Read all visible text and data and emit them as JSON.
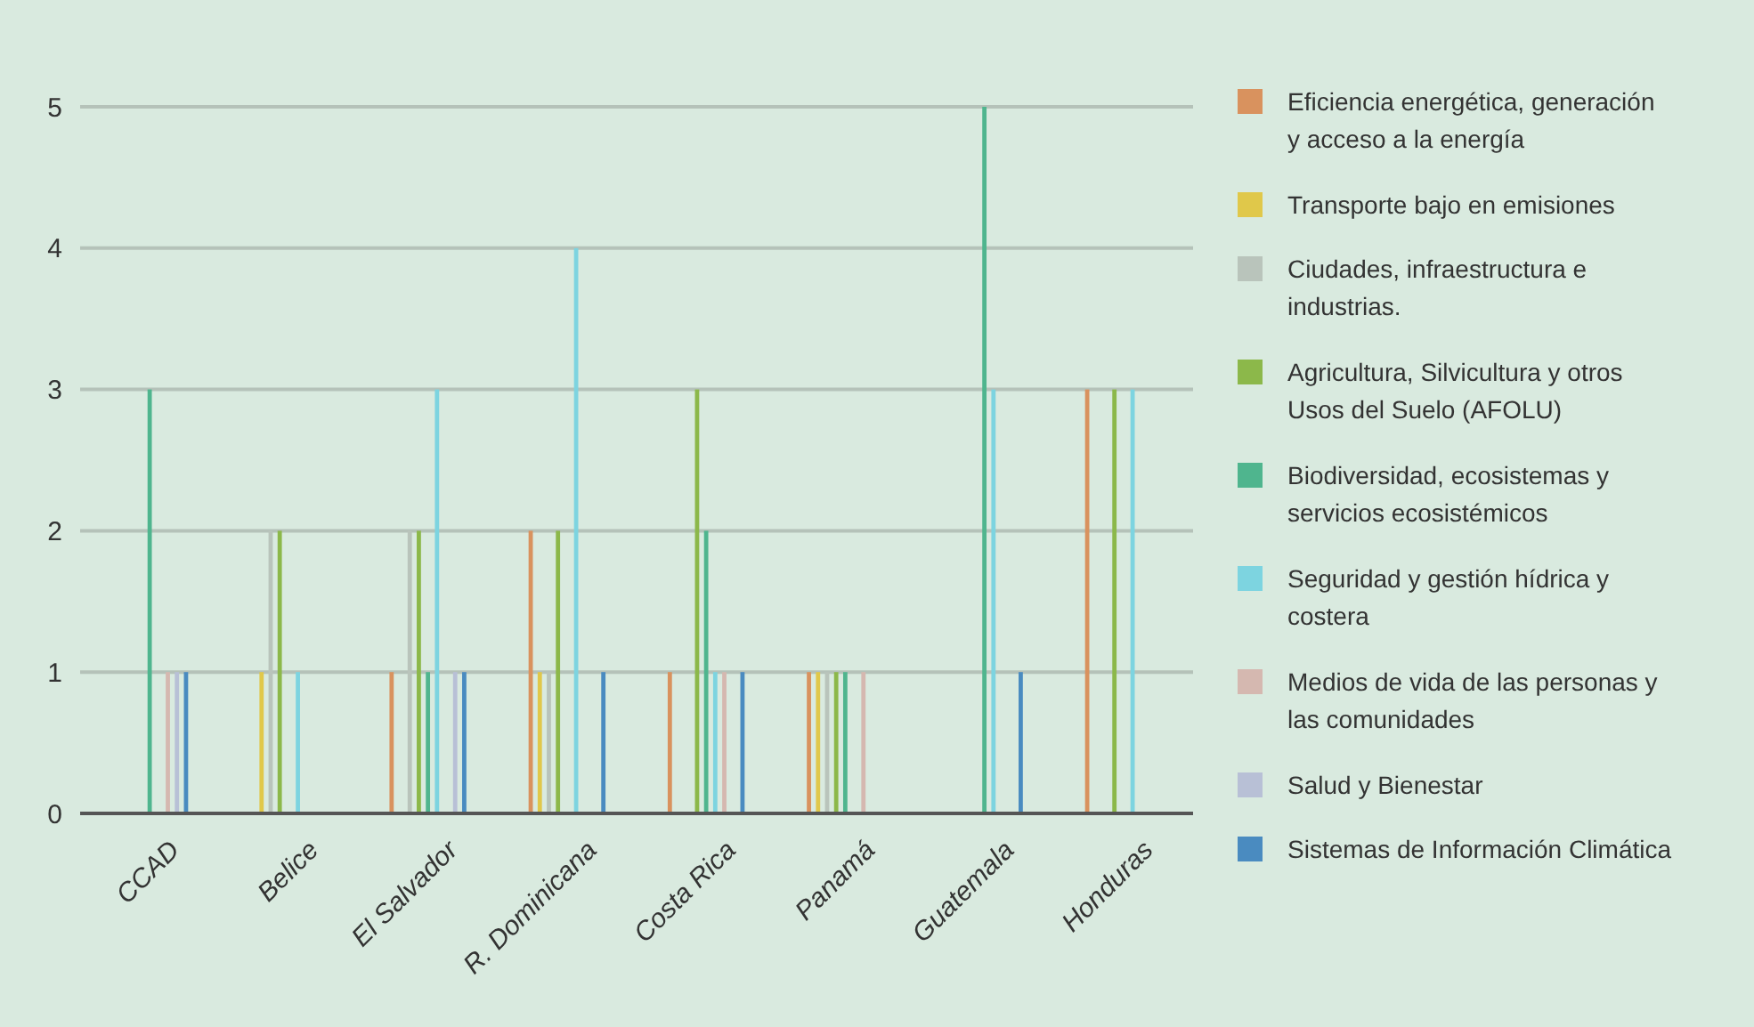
{
  "chart_data": {
    "type": "bar",
    "categories": [
      "CCAD",
      "Belice",
      "El Salvador",
      "R. Dominicana",
      "Costa Rica",
      "Panamá",
      "Guatemala",
      "Honduras"
    ],
    "series": [
      {
        "name": "Eficiencia energética, generación y acceso a la energía",
        "color": "#d9925e",
        "values": [
          0,
          0,
          1,
          2,
          1,
          1,
          0,
          3
        ]
      },
      {
        "name": "Transporte bajo en emisiones",
        "color": "#e0c84a",
        "values": [
          0,
          1,
          0,
          1,
          0,
          1,
          0,
          0
        ]
      },
      {
        "name": "Ciudades, infraestructura e industrias.",
        "color": "#b9c4bb",
        "values": [
          0,
          2,
          2,
          1,
          0,
          1,
          0,
          0
        ]
      },
      {
        "name": "Agricultura, Silvicultura y otros Usos del Suelo (AFOLU)",
        "color": "#8cb84a",
        "values": [
          0,
          2,
          2,
          2,
          3,
          1,
          0,
          3
        ]
      },
      {
        "name": "Biodiversidad, ecosistemas y servicios ecosistémicos",
        "color": "#4fb58e",
        "values": [
          3,
          0,
          1,
          0,
          2,
          1,
          5,
          0
        ]
      },
      {
        "name": "Seguridad y gestión hídrica y costera",
        "color": "#7dd4e0",
        "values": [
          0,
          1,
          3,
          4,
          1,
          0,
          3,
          3
        ]
      },
      {
        "name": "Medios de vida de las personas y las comunidades",
        "color": "#d5b8b0",
        "values": [
          1,
          0,
          0,
          0,
          1,
          1,
          0,
          0
        ]
      },
      {
        "name": "Salud y Bienestar",
        "color": "#b8c0d6",
        "values": [
          1,
          0,
          1,
          0,
          0,
          0,
          0,
          0
        ]
      },
      {
        "name": "Sistemas de Información Climática",
        "color": "#4a8bc0",
        "values": [
          1,
          0,
          1,
          1,
          1,
          0,
          1,
          0
        ]
      }
    ],
    "ylim": [
      0,
      5
    ],
    "yticks": [
      0,
      1,
      2,
      3,
      4,
      5
    ],
    "grid": "y",
    "legend": "right"
  }
}
